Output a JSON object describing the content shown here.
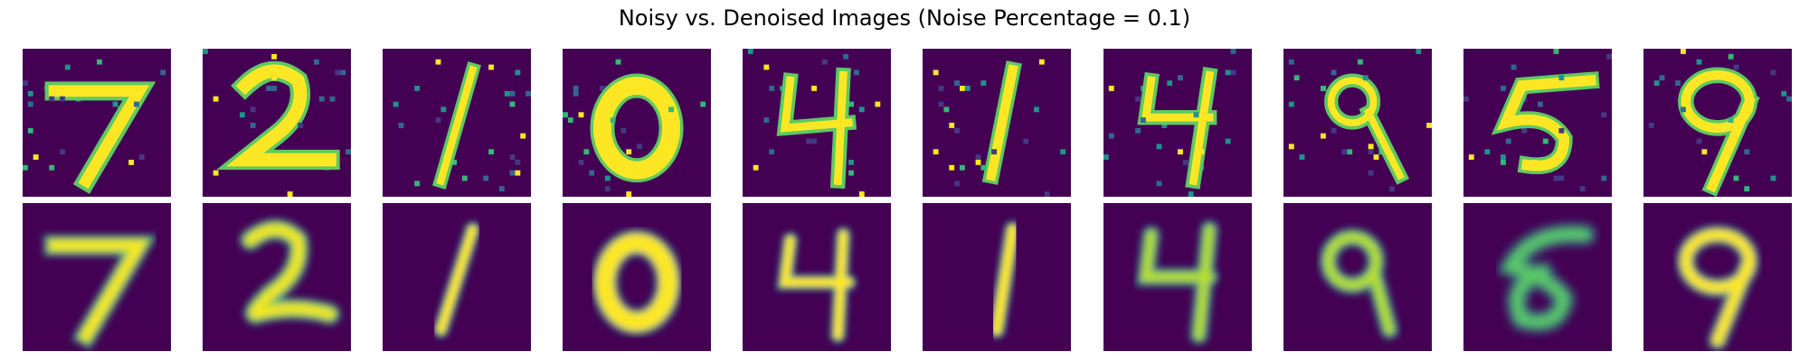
{
  "figure": {
    "title": "Noisy vs. Denoised Images (Noise Percentage = 0.1)"
  },
  "digits": [
    "7",
    "2",
    "1",
    "0",
    "4",
    "1",
    "4",
    "9",
    "5",
    "9"
  ],
  "colors": {
    "background": "#440154",
    "stroke_bright": "#fde725",
    "stroke_mid": "#5ec962",
    "stroke_edge": "#21918c",
    "noise_colors": [
      "#fde725",
      "#35b779",
      "#21918c",
      "#31688e",
      "#443983"
    ]
  },
  "noise_fraction": 0.1
}
